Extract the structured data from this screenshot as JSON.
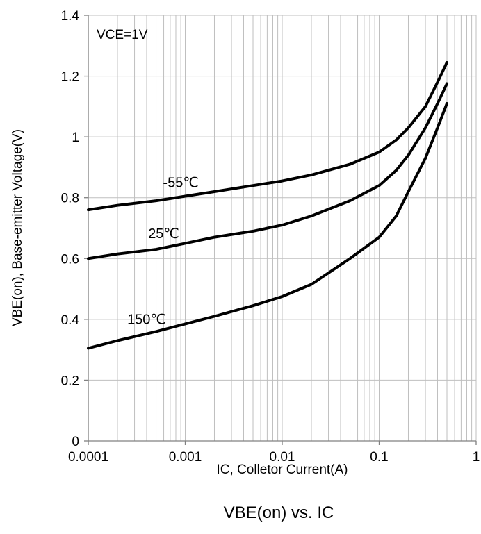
{
  "chart_data": {
    "type": "line",
    "title": "VBE(on) vs. IC",
    "xlabel": "IC, Colletor Current(A)",
    "ylabel": "VBE(on), Base-emitter Voltage(V)",
    "x_scale": "log",
    "xlim": [
      0.0001,
      1
    ],
    "ylim": [
      0,
      1.4
    ],
    "x_ticks": [
      "0.0001",
      "0.001",
      "0.01",
      "0.1",
      "1"
    ],
    "y_ticks": [
      "0",
      "0.2",
      "0.4",
      "0.6",
      "0.8",
      "1",
      "1.2",
      "1.4"
    ],
    "grid": true,
    "annotation": "VCE=1V",
    "colors": {
      "line": "#000000",
      "grid": "#bfbfbf",
      "axis": "#808080"
    },
    "series": [
      {
        "name": "-55℃",
        "x": [
          0.0001,
          0.0002,
          0.0005,
          0.001,
          0.002,
          0.005,
          0.01,
          0.02,
          0.05,
          0.1,
          0.15,
          0.2,
          0.3,
          0.4,
          0.5
        ],
        "y": [
          0.76,
          0.775,
          0.79,
          0.805,
          0.82,
          0.84,
          0.855,
          0.875,
          0.91,
          0.95,
          0.99,
          1.03,
          1.1,
          1.18,
          1.245
        ]
      },
      {
        "name": "25℃",
        "x": [
          0.0001,
          0.0002,
          0.0005,
          0.001,
          0.002,
          0.005,
          0.01,
          0.02,
          0.05,
          0.1,
          0.15,
          0.2,
          0.3,
          0.4,
          0.5
        ],
        "y": [
          0.6,
          0.615,
          0.63,
          0.65,
          0.67,
          0.69,
          0.71,
          0.74,
          0.79,
          0.84,
          0.89,
          0.94,
          1.03,
          1.11,
          1.175
        ]
      },
      {
        "name": "150℃",
        "x": [
          0.0001,
          0.0002,
          0.0005,
          0.001,
          0.002,
          0.005,
          0.01,
          0.02,
          0.05,
          0.1,
          0.15,
          0.2,
          0.3,
          0.4,
          0.5
        ],
        "y": [
          0.305,
          0.33,
          0.36,
          0.385,
          0.41,
          0.445,
          0.475,
          0.515,
          0.6,
          0.67,
          0.74,
          0.82,
          0.93,
          1.03,
          1.11
        ]
      }
    ]
  }
}
